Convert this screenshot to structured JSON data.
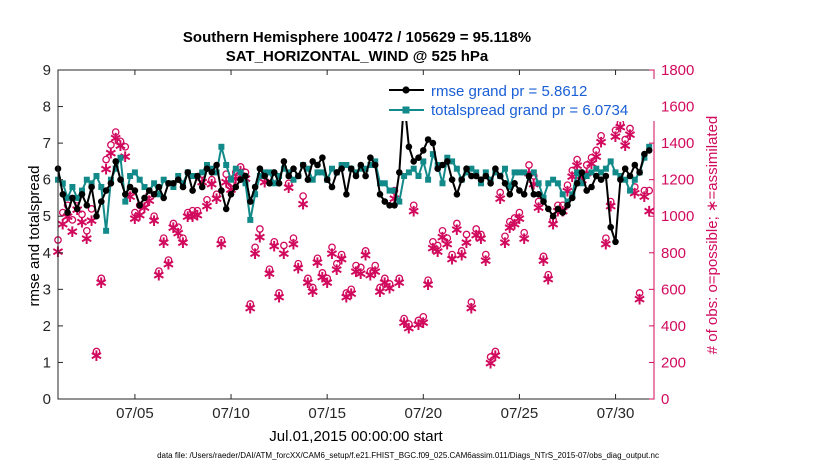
{
  "colors": {
    "rmse": "#000000",
    "spread": "#138a8a",
    "obs": "#d10a5e",
    "legend_text": "#1a5fd6"
  },
  "chart_data": {
    "type": "line",
    "title": "Southern Hemisphere 100472 / 105629 = 95.118%",
    "subtitle": "SAT_HORIZONTAL_WIND @ 525 hPa",
    "xlabel": "Jul.01,2015 00:00:00 start",
    "ylabel": "rmse and totalspread",
    "y2label": "# of obs: o=possible; ∗=assimilated",
    "footnote": "data file: /Users/raeder/DAI/ATM_forcXX/CAM6_setup/f.e21.FHIST_BGC.f09_025.CAM6assim.011/Diags_NTrS_2015-07/obs_diag_output.nc",
    "xlim": [
      1,
      32
    ],
    "ylim": [
      0,
      9
    ],
    "y2lim": [
      0,
      1800
    ],
    "xticks": [
      5,
      10,
      15,
      20,
      25,
      30
    ],
    "xtick_labels": [
      "07/05",
      "07/10",
      "07/15",
      "07/20",
      "07/25",
      "07/30"
    ],
    "yticks": [
      0,
      1,
      2,
      3,
      4,
      5,
      6,
      7,
      8,
      9
    ],
    "ytick_labels": [
      "0",
      "1",
      "2",
      "3",
      "4",
      "5",
      "6",
      "7",
      "8",
      "9"
    ],
    "y2ticks": [
      0,
      200,
      400,
      600,
      800,
      1000,
      1200,
      1400,
      1600,
      1800
    ],
    "y2tick_labels": [
      "0",
      "200",
      "400",
      "600",
      "800",
      "1000",
      "1200",
      "1400",
      "1600",
      "1800"
    ],
    "legend": [
      "rmse grand pr = 5.8612",
      "totalspread grand pr = 6.0734"
    ],
    "legend_position": "top-right",
    "x": [
      1.0,
      1.25,
      1.5,
      1.75,
      2.0,
      2.25,
      2.5,
      2.75,
      3.0,
      3.25,
      3.5,
      3.75,
      4.0,
      4.25,
      4.5,
      4.75,
      5.0,
      5.25,
      5.5,
      5.75,
      6.0,
      6.25,
      6.5,
      6.75,
      7.0,
      7.25,
      7.5,
      7.75,
      8.0,
      8.25,
      8.5,
      8.75,
      9.0,
      9.25,
      9.5,
      9.75,
      10.0,
      10.25,
      10.5,
      10.75,
      11.0,
      11.25,
      11.5,
      11.75,
      12.0,
      12.25,
      12.5,
      12.75,
      13.0,
      13.25,
      13.5,
      13.75,
      14.0,
      14.25,
      14.5,
      14.75,
      15.0,
      15.25,
      15.5,
      15.75,
      16.0,
      16.25,
      16.5,
      16.75,
      17.0,
      17.25,
      17.5,
      17.75,
      18.0,
      18.25,
      18.5,
      18.75,
      19.0,
      19.25,
      19.5,
      19.75,
      20.0,
      20.25,
      20.5,
      20.75,
      21.0,
      21.25,
      21.5,
      21.75,
      22.0,
      22.25,
      22.5,
      22.75,
      23.0,
      23.25,
      23.5,
      23.75,
      24.0,
      24.25,
      24.5,
      24.75,
      25.0,
      25.25,
      25.5,
      25.75,
      26.0,
      26.25,
      26.5,
      26.75,
      27.0,
      27.25,
      27.5,
      27.75,
      28.0,
      28.25,
      28.5,
      28.75,
      29.0,
      29.25,
      29.5,
      29.75,
      30.0,
      30.25,
      30.5,
      30.75,
      31.0,
      31.25,
      31.5,
      31.75
    ],
    "series": [
      {
        "name": "rmse",
        "values": [
          6.3,
          5.6,
          5.1,
          5.5,
          5.2,
          5.6,
          5.3,
          5.8,
          5.0,
          5.4,
          5.7,
          5.9,
          6.5,
          6.0,
          5.6,
          5.8,
          5.7,
          5.3,
          5.5,
          5.7,
          5.6,
          5.8,
          5.5,
          5.9,
          5.9,
          6.0,
          5.8,
          6.2,
          5.7,
          6.1,
          5.8,
          6.3,
          6.2,
          6.4,
          5.7,
          5.2,
          5.6,
          5.8,
          6.0,
          6.1,
          5.4,
          5.8,
          6.3,
          6.1,
          5.9,
          6.2,
          5.9,
          6.5,
          6.1,
          6.3,
          6.1,
          6.4,
          6.0,
          6.5,
          6.4,
          6.6,
          6.0,
          5.8,
          6.2,
          6.3,
          5.6,
          6.3,
          6.1,
          6.4,
          6.1,
          6.6,
          6.4,
          5.6,
          5.4,
          5.3,
          5.3,
          6.2,
          8.2,
          6.9,
          6.5,
          6.6,
          6.8,
          7.1,
          7.0,
          6.3,
          6.4,
          6.5,
          6.0,
          5.6,
          6.0,
          6.3,
          6.1,
          6.1,
          6.0,
          6.1,
          5.9,
          6.3,
          6.1,
          5.9,
          5.6,
          5.9,
          5.7,
          5.6,
          6.1,
          5.6,
          5.6,
          5.4,
          5.2,
          5.0,
          5.2,
          5.1,
          5.3,
          5.5,
          5.9,
          6.2,
          5.7,
          5.8,
          6.1,
          6.0,
          6.1,
          4.7,
          4.3,
          6.0,
          6.3,
          6.1,
          6.4,
          6.2,
          6.7,
          6.8
        ],
        "color": "#000000",
        "marker": "filled-circle"
      },
      {
        "name": "totalspread",
        "values": [
          6.0,
          5.9,
          5.5,
          5.8,
          5.5,
          5.7,
          6.0,
          5.9,
          6.1,
          5.8,
          4.6,
          6.0,
          6.3,
          6.6,
          5.4,
          6.1,
          6.2,
          6.0,
          5.8,
          5.7,
          5.9,
          5.6,
          6.0,
          5.9,
          5.8,
          6.1,
          5.9,
          6.2,
          6.1,
          6.1,
          6.2,
          6.4,
          6.3,
          6.2,
          6.9,
          6.4,
          6.0,
          6.3,
          6.2,
          5.9,
          4.9,
          5.6,
          6.1,
          6.2,
          6.2,
          5.9,
          6.1,
          6.3,
          6.2,
          6.0,
          6.1,
          6.4,
          6.3,
          6.0,
          6.2,
          6.2,
          6.0,
          6.3,
          6.2,
          6.4,
          6.4,
          6.3,
          6.2,
          6.3,
          6.3,
          6.4,
          6.5,
          5.9,
          5.9,
          5.7,
          5.7,
          5.4,
          6.1,
          6.2,
          6.3,
          6.1,
          6.5,
          6.0,
          6.7,
          6.4,
          5.9,
          6.6,
          6.5,
          6.3,
          6.0,
          6.2,
          6.3,
          6.2,
          5.9,
          6.2,
          6.0,
          6.2,
          6.1,
          6.3,
          5.8,
          6.2,
          6.2,
          6.2,
          6.1,
          6.2,
          5.9,
          5.5,
          5.9,
          6.0,
          5.9,
          5.6,
          5.4,
          5.6,
          6.2,
          5.9,
          6.1,
          6.2,
          6.3,
          6.2,
          6.3,
          6.5,
          6.2,
          6.1,
          6.0,
          5.7,
          6.0,
          6.2,
          6.6,
          6.9
        ],
        "color": "#138a8a",
        "marker": "filled-square"
      }
    ],
    "obs_possible": [
      870,
      1020,
      1060,
      980,
      1090,
      1010,
      920,
      1040,
      260,
      660,
      1310,
      1390,
      1460,
      1410,
      1380,
      1140,
      1020,
      1060,
      1070,
      1120,
      1000,
      700,
      880,
      760,
      960,
      940,
      880,
      1020,
      1030,
      1030,
      1230,
      1090,
      1200,
      1120,
      870,
      1230,
      1180,
      1240,
      1270,
      1240,
      520,
      830,
      930,
      1230,
      710,
      860,
      580,
      840,
      1180,
      880,
      740,
      1110,
      660,
      610,
      770,
      690,
      660,
      830,
      740,
      790,
      580,
      600,
      730,
      720,
      810,
      700,
      730,
      610,
      660,
      630,
      1140,
      660,
      440,
      410,
      1060,
      430,
      450,
      650,
      860,
      840,
      920,
      880,
      790,
      960,
      810,
      900,
      530,
      930,
      900,
      790,
      230,
      260,
      1130,
      890,
      970,
      990,
      1020,
      910,
      1280,
      1220,
      1080,
      780,
      680,
      980,
      1060,
      1060,
      1170,
      1250,
      1310,
      1230,
      1280,
      1320,
      1360,
      1440,
      880,
      1080,
      1470,
      1510,
      1420,
      1480,
      1160,
      580,
      1140,
      1140
    ],
    "obs_assimilated": [
      810,
      960,
      1000,
      920,
      1040,
      970,
      880,
      980,
      240,
      640,
      1260,
      1350,
      1430,
      1390,
      1330,
      1110,
      990,
      1010,
      1050,
      1090,
      980,
      680,
      860,
      740,
      940,
      910,
      860,
      1000,
      1000,
      1010,
      1190,
      1060,
      1180,
      1100,
      850,
      1190,
      1150,
      1210,
      1250,
      1210,
      500,
      800,
      890,
      1190,
      690,
      840,
      560,
      800,
      1160,
      850,
      720,
      1070,
      640,
      590,
      750,
      670,
      640,
      800,
      710,
      770,
      560,
      580,
      700,
      690,
      790,
      680,
      700,
      590,
      640,
      610,
      1100,
      640,
      420,
      390,
      1030,
      410,
      420,
      630,
      830,
      810,
      890,
      850,
      770,
      930,
      790,
      860,
      500,
      900,
      880,
      760,
      200,
      240,
      1100,
      860,
      940,
      960,
      990,
      880,
      1240,
      1180,
      1050,
      760,
      660,
      960,
      1030,
      1030,
      1140,
      1220,
      1280,
      1200,
      1240,
      1290,
      1330,
      1410,
      850,
      1060,
      1440,
      1490,
      1390,
      1450,
      1130,
      550,
      1110,
      1030
    ]
  }
}
